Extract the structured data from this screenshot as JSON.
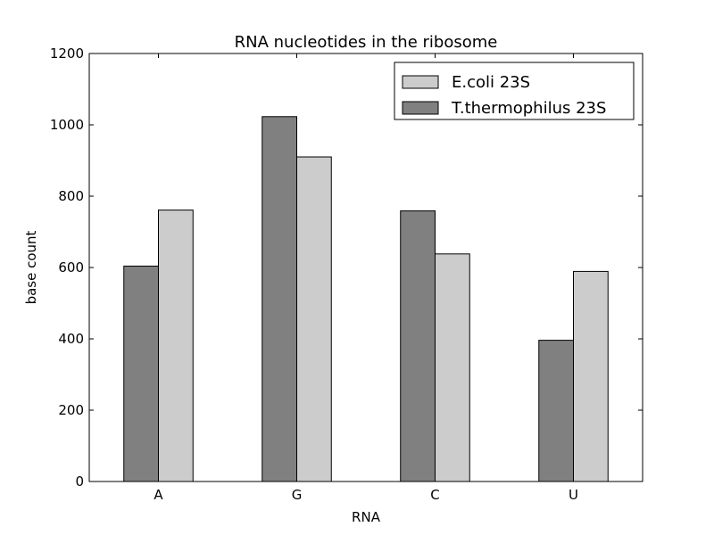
{
  "chart_data": {
    "type": "bar",
    "title": "RNA nucleotides in the ribosome",
    "xlabel": "RNA",
    "ylabel": "base count",
    "categories": [
      "A",
      "G",
      "C",
      "U"
    ],
    "ylim": [
      0,
      1200
    ],
    "yticks": [
      0,
      200,
      400,
      600,
      800,
      1000,
      1200
    ],
    "legend_position": "top-right",
    "series": [
      {
        "name": "T.thermophilus 23S",
        "values": [
          604,
          1023,
          759,
          396
        ],
        "color": "#808080"
      },
      {
        "name": "E.coli 23S",
        "values": [
          761,
          910,
          638,
          589
        ],
        "color": "#cccccc"
      }
    ],
    "legend_order": [
      "E.coli 23S",
      "T.thermophilus 23S"
    ]
  }
}
